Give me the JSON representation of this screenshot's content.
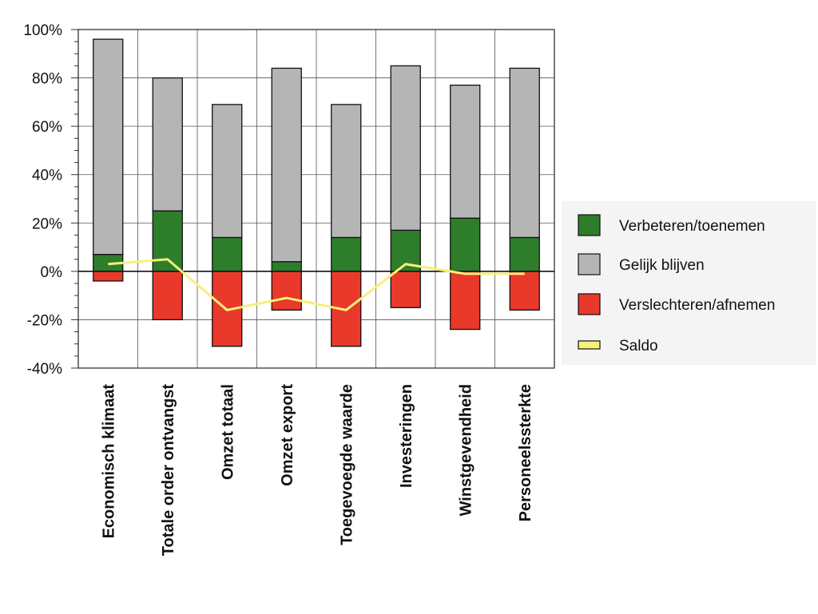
{
  "chart_data": {
    "type": "bar",
    "stacked": true,
    "categories": [
      "Economisch klimaat",
      "Totale order ontvangst",
      "Omzet totaal",
      "Omzet export",
      "Toegevoegde waarde",
      "Investeringen",
      "Winstgevendheid",
      "Personeelssterkte"
    ],
    "series": [
      {
        "name": "Verbeteren/toenemen",
        "kind": "bar",
        "color": "#2e7d2a",
        "values": [
          7,
          25,
          14,
          4,
          14,
          17,
          22,
          14
        ]
      },
      {
        "name": "Gelijk blijven",
        "kind": "bar",
        "color": "#b5b5b5",
        "values": [
          89,
          55,
          55,
          80,
          55,
          68,
          55,
          70
        ]
      },
      {
        "name": "Verslechteren/afnemen",
        "kind": "bar",
        "color": "#e8392a",
        "values": [
          -4,
          -20,
          -31,
          -16,
          -31,
          -15,
          -24,
          -16
        ]
      },
      {
        "name": "Saldo",
        "kind": "line",
        "color": "#f7f07a",
        "values": [
          3,
          5,
          -16,
          -11,
          -16,
          3,
          -1,
          -1
        ]
      }
    ],
    "y_ticks": [
      "100%",
      "80%",
      "60%",
      "40%",
      "20%",
      "0%",
      "-20%",
      "-40%"
    ],
    "ylim": [
      -40,
      100
    ],
    "grid": true,
    "legend_position": "right"
  }
}
